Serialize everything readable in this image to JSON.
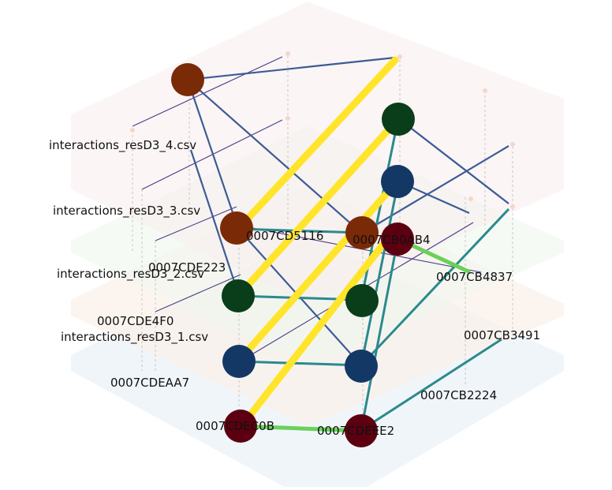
{
  "diagram": {
    "type": "multilayer-network-3d",
    "layers": [
      {
        "id": "L4",
        "label": "interactions_resD3_4.csv",
        "color": "#f9eeee"
      },
      {
        "id": "L3",
        "label": "interactions_resD3_3.csv",
        "color": "#eef6ee"
      },
      {
        "id": "L2",
        "label": "interactions_resD3_2.csv",
        "color": "#fbf1e8"
      },
      {
        "id": "L1",
        "label": "interactions_resD3_1.csv",
        "color": "#edf3f9"
      }
    ],
    "node_labels": [
      {
        "id": "CD5116",
        "text": "0007CD5116"
      },
      {
        "id": "CB0AB4",
        "text": "0007CB0AB4"
      },
      {
        "id": "CDE223",
        "text": "0007CDE223"
      },
      {
        "id": "CB4837",
        "text": "0007CB4837"
      },
      {
        "id": "CDE4F0",
        "text": "0007CDE4F0"
      },
      {
        "id": "CB3491",
        "text": "0007CB3491"
      },
      {
        "id": "CDEAA7",
        "text": "0007CDEAA7"
      },
      {
        "id": "CB2224",
        "text": "0007CB2224"
      },
      {
        "id": "CDEC0B",
        "text": "0007CDEC0B"
      },
      {
        "id": "CDEEE2",
        "text": "0007CDEEE2"
      }
    ],
    "node_colors": {
      "brown": "#7a2a07",
      "green": "#0a3d1a",
      "navy": "#143866",
      "maroon": "#5c0011"
    },
    "edge_colors": {
      "intra": "#3c5c94",
      "teal": "#2a8a8e",
      "inter_strong": "#ffe42a",
      "green": "#6bd05a",
      "purple": "#4c3a86"
    }
  }
}
